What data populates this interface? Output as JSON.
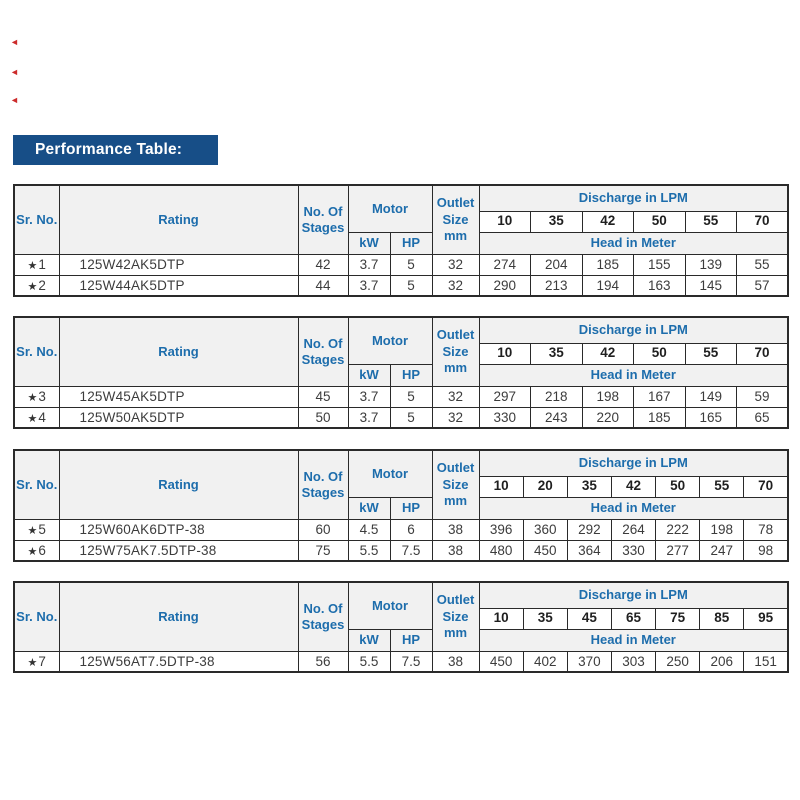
{
  "page": {
    "title": "Performance Table:"
  },
  "glyphs": {
    "star": "★",
    "margin_mark": "◄"
  },
  "colors": {
    "title_bar_bg": "#174e87",
    "header_text": "#1d6dac",
    "header_bg": "#f1f1f1",
    "border": "#2a2a2a",
    "data_text": "#3c3c3c",
    "margin_mark": "#cc2b2b"
  },
  "headers": {
    "sr": "Sr. No.",
    "rating": "Rating",
    "stages": "No. Of Stages",
    "motor": "Motor",
    "kw": "kW",
    "hp": "HP",
    "outlet": "Outlet Size mm",
    "discharge": "Discharge in LPM",
    "head": "Head in Meter"
  },
  "tables": [
    {
      "discharge_lpm": [
        10,
        35,
        42,
        50,
        55,
        70
      ],
      "rows": [
        {
          "sr": "1",
          "rating": "125W42AK5DTP",
          "stages": 42,
          "kw": "3.7",
          "hp": "5",
          "outlet": 32,
          "head_m": [
            274,
            204,
            185,
            155,
            139,
            55
          ]
        },
        {
          "sr": "2",
          "rating": "125W44AK5DTP",
          "stages": 44,
          "kw": "3.7",
          "hp": "5",
          "outlet": 32,
          "head_m": [
            290,
            213,
            194,
            163,
            145,
            57
          ]
        }
      ]
    },
    {
      "discharge_lpm": [
        10,
        35,
        42,
        50,
        55,
        70
      ],
      "rows": [
        {
          "sr": "3",
          "rating": "125W45AK5DTP",
          "stages": 45,
          "kw": "3.7",
          "hp": "5",
          "outlet": 32,
          "head_m": [
            297,
            218,
            198,
            167,
            149,
            59
          ]
        },
        {
          "sr": "4",
          "rating": "125W50AK5DTP",
          "stages": 50,
          "kw": "3.7",
          "hp": "5",
          "outlet": 32,
          "head_m": [
            330,
            243,
            220,
            185,
            165,
            65
          ]
        }
      ]
    },
    {
      "discharge_lpm": [
        10,
        20,
        35,
        42,
        50,
        55,
        70
      ],
      "rows": [
        {
          "sr": "5",
          "rating": "125W60AK6DTP-38",
          "stages": 60,
          "kw": "4.5",
          "hp": "6",
          "outlet": 38,
          "head_m": [
            396,
            360,
            292,
            264,
            222,
            198,
            78
          ]
        },
        {
          "sr": "6",
          "rating": "125W75AK7.5DTP-38",
          "stages": 75,
          "kw": "5.5",
          "hp": "7.5",
          "outlet": 38,
          "head_m": [
            480,
            450,
            364,
            330,
            277,
            247,
            98
          ]
        }
      ]
    },
    {
      "discharge_lpm": [
        10,
        35,
        45,
        65,
        75,
        85,
        95
      ],
      "rows": [
        {
          "sr": "7",
          "rating": "125W56AT7.5DTP-38",
          "stages": 56,
          "kw": "5.5",
          "hp": "7.5",
          "outlet": 38,
          "head_m": [
            450,
            402,
            370,
            303,
            250,
            206,
            151
          ]
        }
      ]
    }
  ]
}
